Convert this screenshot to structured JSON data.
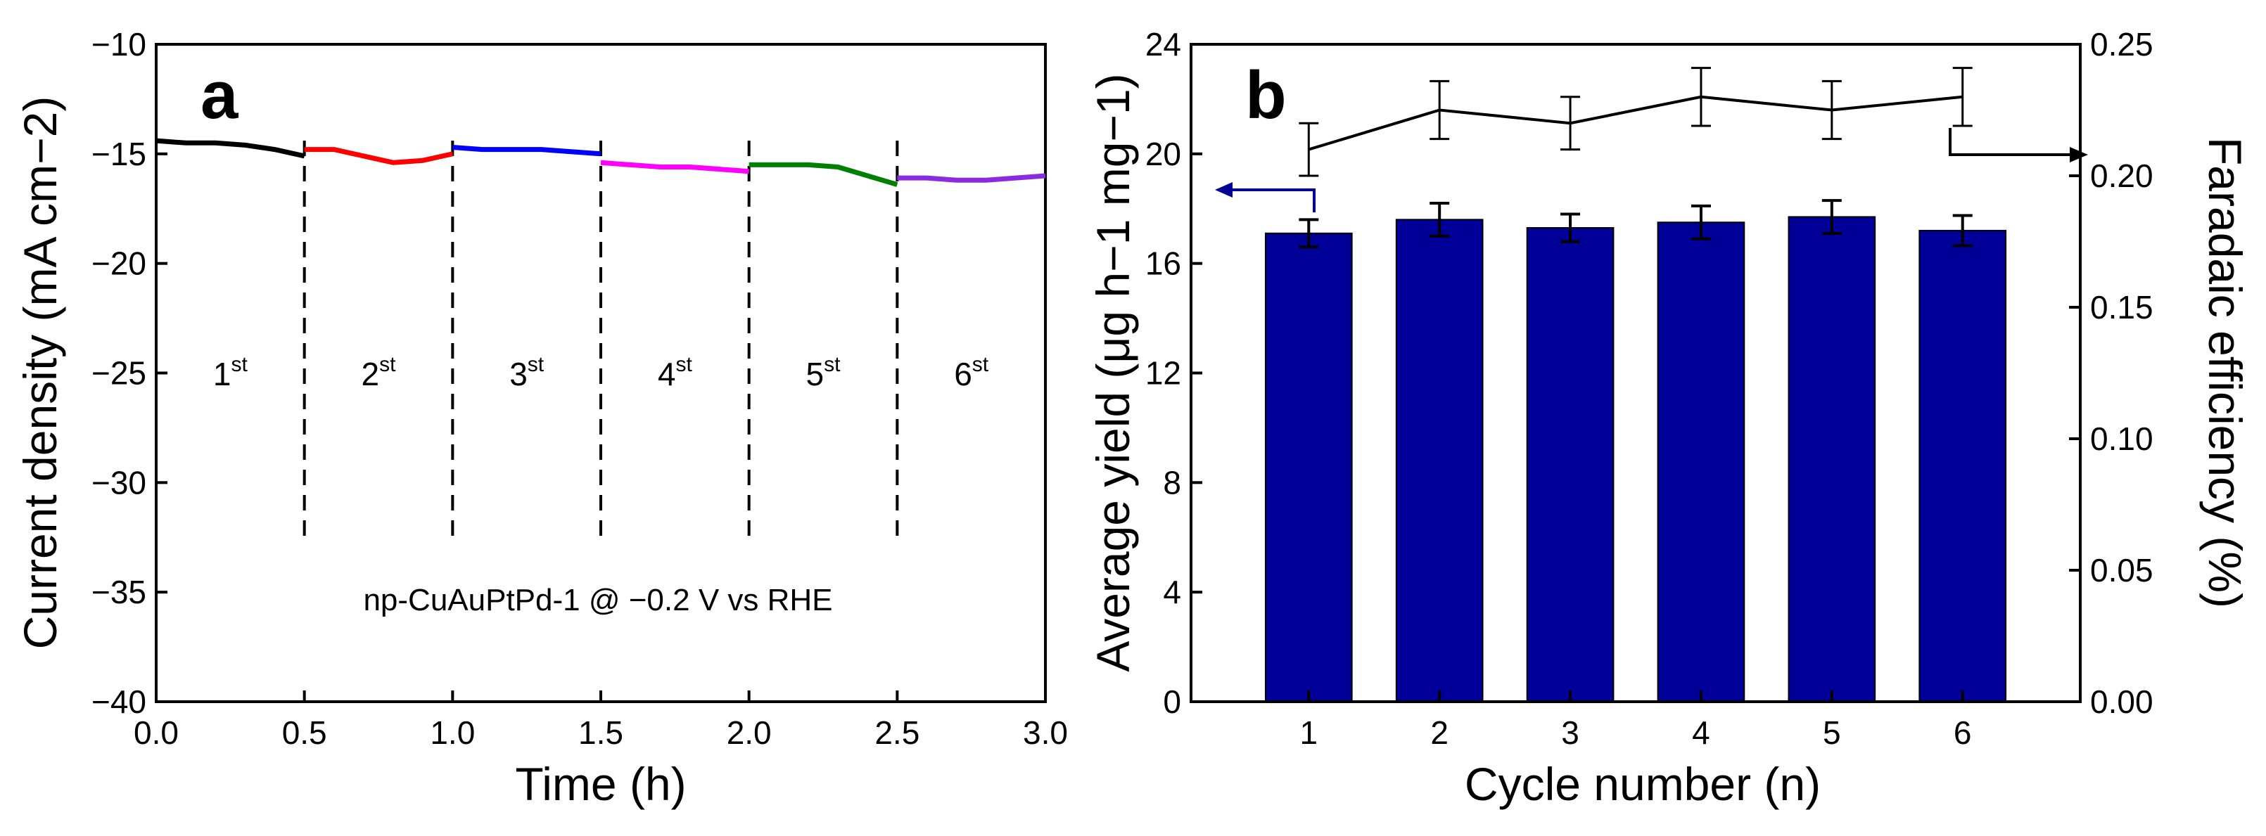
{
  "chart_data": [
    {
      "panel": "a",
      "type": "line",
      "xlabel": "Time (h)",
      "ylabel": "Current density (mA cm−2)",
      "xlim": [
        0.0,
        3.0
      ],
      "ylim": [
        -40,
        -10
      ],
      "xticks": [
        "0.0",
        "0.5",
        "1.0",
        "1.5",
        "2.0",
        "2.5",
        "3.0"
      ],
      "yticks": [
        "−10",
        "−15",
        "−20",
        "−25",
        "−30",
        "−35",
        "−40"
      ],
      "annotation": "np-CuAuPtPd-1 @ −0.2 V vs RHE",
      "cycle_labels": [
        {
          "num": "1",
          "sup": "st"
        },
        {
          "num": "2",
          "sup": "st"
        },
        {
          "num": "3",
          "sup": "st"
        },
        {
          "num": "4",
          "sup": "st"
        },
        {
          "num": "5",
          "sup": "st"
        },
        {
          "num": "6",
          "sup": "st"
        }
      ],
      "divider_times": [
        0.5,
        1.0,
        1.5,
        2.0,
        2.5
      ],
      "series": [
        {
          "name": "cycle 1",
          "color": "#000000",
          "x": [
            0.0,
            0.1,
            0.2,
            0.3,
            0.4,
            0.5
          ],
          "y": [
            -14.4,
            -14.5,
            -14.5,
            -14.6,
            -14.8,
            -15.1
          ]
        },
        {
          "name": "cycle 2",
          "color": "#ff0000",
          "x": [
            0.5,
            0.6,
            0.7,
            0.8,
            0.9,
            1.0
          ],
          "y": [
            -14.8,
            -14.8,
            -15.1,
            -15.4,
            -15.3,
            -15.0
          ]
        },
        {
          "name": "cycle 3",
          "color": "#0000ff",
          "x": [
            1.0,
            1.1,
            1.2,
            1.3,
            1.4,
            1.5
          ],
          "y": [
            -14.7,
            -14.8,
            -14.8,
            -14.8,
            -14.9,
            -15.0
          ]
        },
        {
          "name": "cycle 4",
          "color": "#ff00ff",
          "x": [
            1.5,
            1.6,
            1.7,
            1.8,
            1.9,
            2.0
          ],
          "y": [
            -15.4,
            -15.5,
            -15.6,
            -15.6,
            -15.7,
            -15.8
          ]
        },
        {
          "name": "cycle 5",
          "color": "#008000",
          "x": [
            2.0,
            2.1,
            2.2,
            2.3,
            2.4,
            2.5
          ],
          "y": [
            -15.5,
            -15.5,
            -15.5,
            -15.6,
            -16.0,
            -16.4
          ]
        },
        {
          "name": "cycle 6",
          "color": "#8a2be2",
          "x": [
            2.5,
            2.6,
            2.7,
            2.8,
            2.9,
            3.0
          ],
          "y": [
            -16.1,
            -16.1,
            -16.2,
            -16.2,
            -16.1,
            -16.0
          ]
        }
      ]
    },
    {
      "panel": "b",
      "type": "bar",
      "xlabel": "Cycle number (n)",
      "ylabel": "Average yield (μg h−1 mg−1)",
      "ylabel_right": "Faradaic efficiency (%)",
      "ylim": [
        0,
        24
      ],
      "ylim_right": [
        0.0,
        0.25
      ],
      "yticks": [
        "0",
        "4",
        "8",
        "12",
        "16",
        "20",
        "24"
      ],
      "yticks_right": [
        "0.00",
        "0.05",
        "0.10",
        "0.15",
        "0.20",
        "0.25"
      ],
      "categories": [
        "1",
        "2",
        "3",
        "4",
        "5",
        "6"
      ],
      "bar_color": "#000099",
      "series": [
        {
          "name": "Average yield",
          "axis": "left",
          "values": [
            17.1,
            17.6,
            17.3,
            17.5,
            17.7,
            17.2
          ],
          "errors": [
            0.5,
            0.6,
            0.5,
            0.6,
            0.6,
            0.55
          ]
        },
        {
          "name": "Faradaic efficiency",
          "axis": "right",
          "values": [
            0.21,
            0.225,
            0.22,
            0.23,
            0.225,
            0.23
          ],
          "errors": [
            0.01,
            0.011,
            0.01,
            0.011,
            0.011,
            0.011
          ]
        }
      ]
    }
  ]
}
